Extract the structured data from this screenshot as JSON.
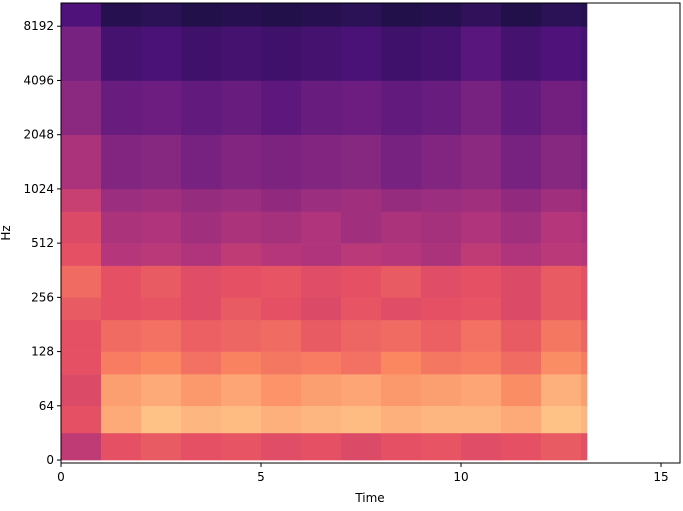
{
  "chart_data": {
    "type": "heatmap",
    "xlabel": "Time",
    "ylabel": "Hz",
    "xlim": [
      0,
      15.475
    ],
    "xticks": [
      0,
      5,
      10,
      15
    ],
    "ylim": [
      -3.5,
      11025
    ],
    "yticks": [
      0,
      64,
      128,
      256,
      512,
      1024,
      2048,
      4096,
      8192
    ],
    "yscale": "symlog",
    "linthresh": 64,
    "colormap": "magma",
    "zlim": [
      -80,
      0
    ],
    "xbins": [
      0,
      1,
      2,
      3,
      4,
      5,
      6,
      7,
      8,
      9,
      10,
      11,
      12,
      13,
      13.15
    ],
    "ybins": [
      0,
      32,
      64,
      96,
      128,
      192,
      256,
      384,
      512,
      768,
      1024,
      2048,
      4096,
      8192,
      11025
    ],
    "z": [
      [
        -38,
        -30,
        -28,
        -30,
        -29,
        -31,
        -30,
        -32,
        -30,
        -29,
        -31,
        -30,
        -28,
        -30
      ],
      [
        -30,
        -14,
        -10,
        -12,
        -11,
        -13,
        -12,
        -11,
        -13,
        -12,
        -12,
        -14,
        -10,
        -12
      ],
      [
        -32,
        -16,
        -14,
        -17,
        -15,
        -18,
        -16,
        -15,
        -17,
        -16,
        -15,
        -19,
        -13,
        -16
      ],
      [
        -30,
        -22,
        -20,
        -24,
        -21,
        -23,
        -22,
        -24,
        -20,
        -23,
        -22,
        -25,
        -19,
        -22
      ],
      [
        -30,
        -25,
        -24,
        -27,
        -26,
        -25,
        -28,
        -26,
        -25,
        -27,
        -24,
        -28,
        -23,
        -26
      ],
      [
        -28,
        -30,
        -29,
        -31,
        -28,
        -30,
        -32,
        -29,
        -31,
        -30,
        -29,
        -32,
        -28,
        -30
      ],
      [
        -25,
        -30,
        -28,
        -31,
        -30,
        -29,
        -31,
        -30,
        -28,
        -31,
        -30,
        -32,
        -28,
        -30
      ],
      [
        -30,
        -40,
        -39,
        -41,
        -38,
        -40,
        -41,
        -39,
        -40,
        -42,
        -38,
        -41,
        -39,
        -40
      ],
      [
        -32,
        -42,
        -41,
        -44,
        -42,
        -43,
        -41,
        -44,
        -42,
        -43,
        -41,
        -44,
        -40,
        -42
      ],
      [
        -36,
        -45,
        -44,
        -46,
        -45,
        -47,
        -45,
        -44,
        -46,
        -45,
        -44,
        -47,
        -44,
        -46
      ],
      [
        -42,
        -50,
        -49,
        -52,
        -50,
        -51,
        -50,
        -49,
        -52,
        -50,
        -48,
        -52,
        -49,
        -51
      ],
      [
        -48,
        -55,
        -54,
        -56,
        -55,
        -57,
        -55,
        -54,
        -56,
        -55,
        -52,
        -56,
        -53,
        -55
      ],
      [
        -52,
        -62,
        -61,
        -63,
        -62,
        -63,
        -62,
        -61,
        -63,
        -62,
        -58,
        -62,
        -60,
        -62
      ],
      [
        -60,
        -68,
        -67,
        -69,
        -68,
        -69,
        -68,
        -67,
        -69,
        -68,
        -66,
        -69,
        -67,
        -68
      ]
    ]
  }
}
